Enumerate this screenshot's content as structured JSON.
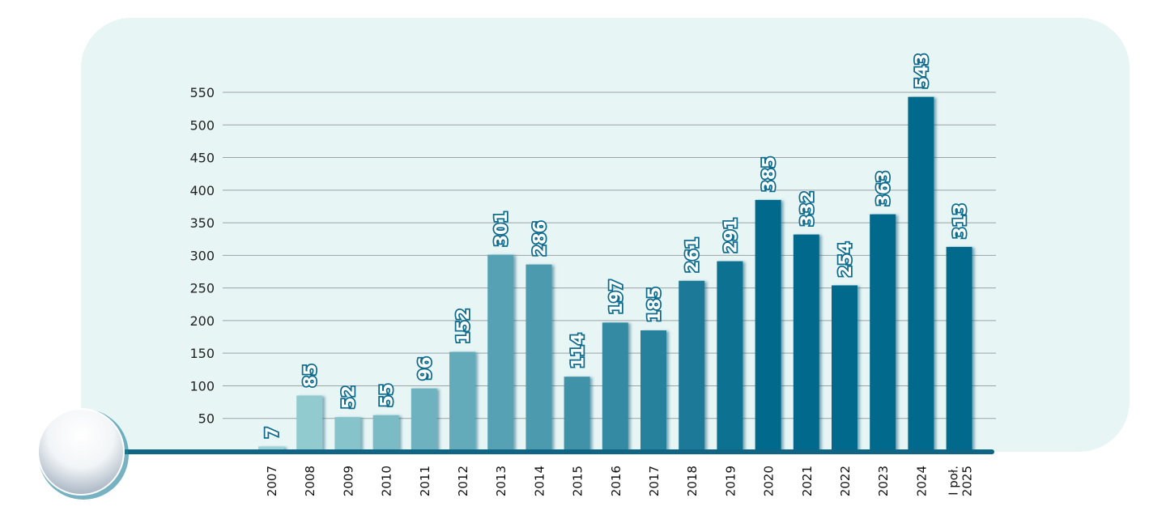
{
  "chart_data": {
    "type": "bar",
    "title": "",
    "xlabel": "",
    "ylabel": "",
    "ylim": [
      0,
      550
    ],
    "yticks": [
      50,
      100,
      150,
      200,
      250,
      300,
      350,
      400,
      450,
      500,
      550
    ],
    "grid": true,
    "categories": [
      "2007",
      "2008",
      "2009",
      "2010",
      "2011",
      "2012",
      "2013",
      "2014",
      "2015",
      "2016",
      "2017",
      "2018",
      "2019",
      "2020",
      "2021",
      "2022",
      "2023",
      "2024",
      [
        "I poł.",
        "2025"
      ]
    ],
    "values": [
      7,
      85,
      52,
      55,
      96,
      152,
      301,
      286,
      114,
      197,
      185,
      261,
      291,
      385,
      332,
      254,
      363,
      543,
      313
    ],
    "colors": {
      "start": "#9dd3d6",
      "end": "#05698c",
      "panel": "#e7f5f5",
      "axis": "#0f6583",
      "label_stroke": "#0d6c8e"
    }
  }
}
